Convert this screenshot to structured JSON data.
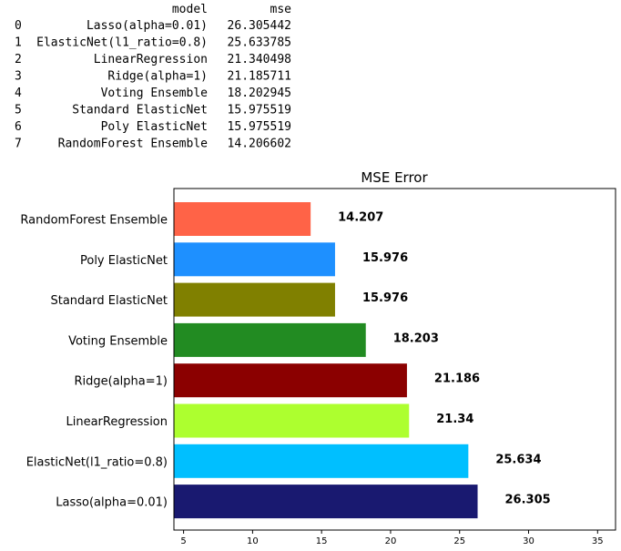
{
  "table": {
    "columns": [
      "model",
      "mse"
    ],
    "rows": [
      {
        "index": "0",
        "model": "Lasso(alpha=0.01)",
        "mse": "26.305442"
      },
      {
        "index": "1",
        "model": "ElasticNet(l1_ratio=0.8)",
        "mse": "25.633785"
      },
      {
        "index": "2",
        "model": "LinearRegression",
        "mse": "21.340498"
      },
      {
        "index": "3",
        "model": "Ridge(alpha=1)",
        "mse": "21.185711"
      },
      {
        "index": "4",
        "model": "Voting Ensemble",
        "mse": "18.202945"
      },
      {
        "index": "5",
        "model": "Standard ElasticNet",
        "mse": "15.975519"
      },
      {
        "index": "6",
        "model": "Poly ElasticNet",
        "mse": "15.975519"
      },
      {
        "index": "7",
        "model": "RandomForest Ensemble",
        "mse": "14.206602"
      }
    ]
  },
  "chart_data": {
    "type": "bar",
    "orientation": "horizontal",
    "title": "MSE Error",
    "xlabel": "",
    "ylabel": "",
    "xlim": [
      4.3,
      36.3
    ],
    "xticks": [
      5,
      10,
      15,
      20,
      25,
      30,
      35
    ],
    "grid": false,
    "categories": [
      "RandomForest Ensemble",
      "Poly ElasticNet",
      "Standard ElasticNet",
      "Voting Ensemble",
      "Ridge(alpha=1)",
      "LinearRegression",
      "ElasticNet(l1_ratio=0.8)",
      "Lasso(alpha=0.01)"
    ],
    "values": [
      14.207,
      15.976,
      15.976,
      18.203,
      21.186,
      21.34,
      25.634,
      26.305
    ],
    "data_labels": [
      "14.207",
      "15.976",
      "15.976",
      "18.203",
      "21.186",
      "21.34",
      "25.634",
      "26.305"
    ],
    "colors": [
      "#ff6347",
      "#1e90ff",
      "#808000",
      "#228b22",
      "#8b0000",
      "#adff2f",
      "#00bfff",
      "#191970"
    ]
  }
}
